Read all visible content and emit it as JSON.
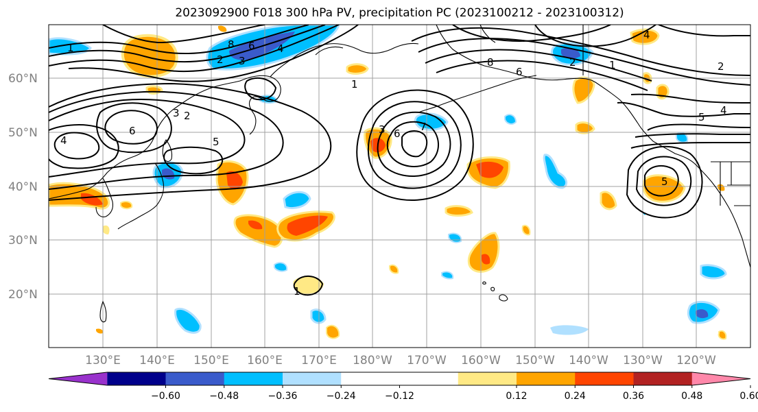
{
  "title": "2023092900 F018 300 hPa PV, precipitation PC (2023100212 - 2023100312)",
  "lat_labels": [
    "60°N",
    "50°N",
    "40°N",
    "30°N",
    "20°N"
  ],
  "lon_labels": [
    "130°E",
    "140°E",
    "150°E",
    "160°E",
    "170°E",
    "180°W",
    "170°W",
    "160°W",
    "150°W",
    "140°W",
    "130°W",
    "120°W"
  ],
  "colorbar": {
    "colors": [
      "#9932CC",
      "#00008B",
      "#3A5BCB",
      "#00BFFF",
      "#B0E0FF",
      "#FFFFFF",
      "#FFFFFF",
      "#FFE985",
      "#FFA500",
      "#FF4500",
      "#B22222",
      "#FF88AA"
    ],
    "tick_labels": [
      "−0.60",
      "−0.48",
      "−0.36",
      "−0.24",
      "−0.12",
      "0.12",
      "0.24",
      "0.36",
      "0.48",
      "0.60"
    ]
  },
  "contour_labels": [
    "1",
    "1",
    "1",
    "2",
    "2",
    "2",
    "2",
    "3",
    "3",
    "3",
    "4",
    "4",
    "4",
    "4",
    "5",
    "5",
    "5",
    "6",
    "6",
    "6",
    "6",
    "7",
    "8",
    "8",
    "1"
  ]
}
